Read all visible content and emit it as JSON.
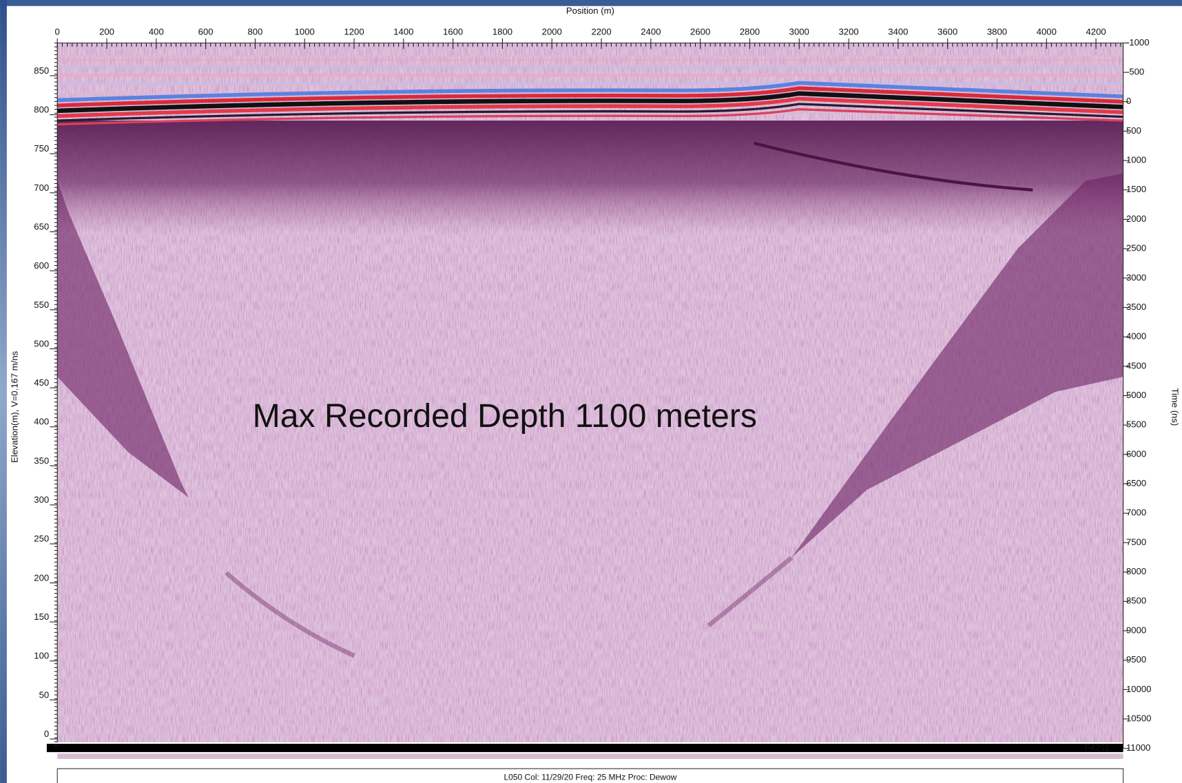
{
  "chart_data": {
    "type": "radargram",
    "x_label": "Position (m)",
    "y_label": "Elevation(m), V=0.167 m/ns",
    "y2_label": "Time (ns)",
    "annotation": "Max Recorded Depth 1100 meters",
    "xlim": [
      0,
      4310
    ],
    "xticks": [
      0,
      200,
      400,
      600,
      800,
      1000,
      1200,
      1400,
      1600,
      1800,
      2000,
      2200,
      2400,
      2600,
      2800,
      3000,
      3200,
      3400,
      3600,
      3800,
      4000,
      4200
    ],
    "ylim": [
      -12,
      892
    ],
    "yticks": [
      0,
      50,
      100,
      150,
      200,
      250,
      300,
      350,
      400,
      450,
      500,
      550,
      600,
      650,
      700,
      750,
      800,
      850
    ],
    "y2lim": [
      -1000,
      11000
    ],
    "y2ticks": [
      -1000,
      -500,
      0,
      500,
      1000,
      1500,
      2000,
      2500,
      3000,
      3500,
      4000,
      4500,
      5000,
      5500,
      6000,
      6500,
      7000,
      7500,
      8000,
      8500,
      9000,
      9500,
      10000,
      10500,
      11000
    ],
    "end_marker": "F4211",
    "footer": "L050  Col: 11/29/20 Freq: 25 MHz Proc: Dewow"
  }
}
